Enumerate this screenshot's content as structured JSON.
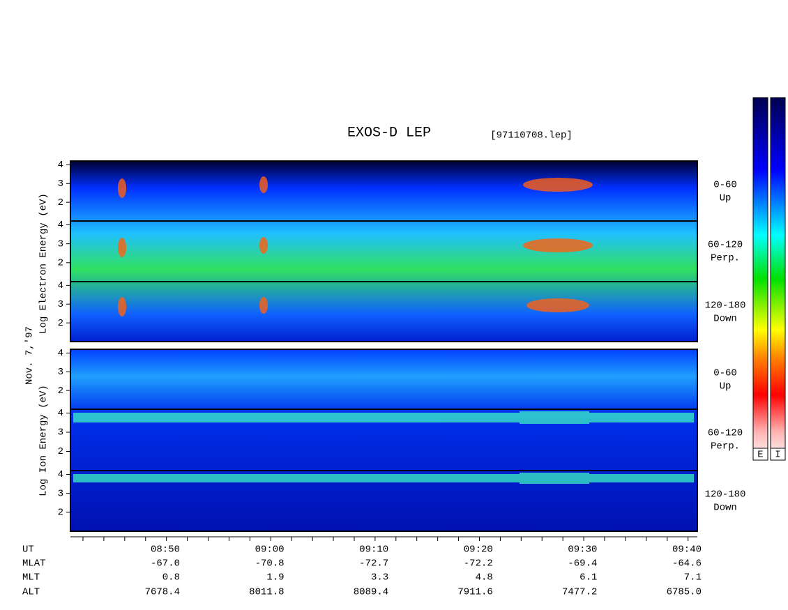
{
  "title": "EXOS-D LEP",
  "file": "[97110708.lep]",
  "date": "Nov. 7,'97",
  "ylim": [
    1,
    4.2
  ],
  "yticks": [
    4,
    3,
    2
  ],
  "panels": [
    {
      "ylabel": "Log  Electron  Energy (eV)",
      "subpanels": [
        {
          "label": "0-60",
          "direction": "Up"
        },
        {
          "label": "60-120",
          "direction": "Perp."
        },
        {
          "label": "120-180",
          "direction": "Down"
        }
      ]
    },
    {
      "ylabel": "Log  Ion  Energy (eV)",
      "subpanels": [
        {
          "label": "0-60",
          "direction": "Up"
        },
        {
          "label": "60-120",
          "direction": "Perp."
        },
        {
          "label": "120-180",
          "direction": "Down"
        }
      ]
    }
  ],
  "time_axis": {
    "rows": [
      {
        "name": "UT",
        "values": [
          "08:50",
          "09:00",
          "09:10",
          "09:20",
          "09:30",
          "09:40"
        ]
      },
      {
        "name": "MLAT",
        "values": [
          "-67.0",
          "-70.8",
          "-72.7",
          "-72.2",
          "-69.4",
          "-64.6"
        ]
      },
      {
        "name": "MLT",
        "values": [
          "0.8",
          "1.9",
          "3.3",
          "4.8",
          "6.1",
          "7.1"
        ]
      },
      {
        "name": "ALT",
        "values": [
          "7678.4",
          "8011.8",
          "8089.4",
          "7911.6",
          "7477.2",
          "6785.0"
        ]
      }
    ]
  },
  "colorbar_labels": [
    "E",
    "I"
  ]
}
